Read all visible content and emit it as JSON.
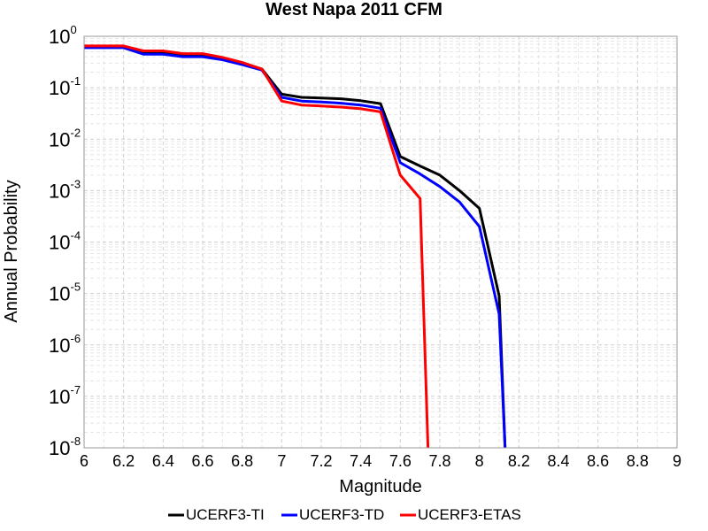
{
  "chart_data": {
    "type": "line",
    "title": "West Napa 2011 CFM",
    "xlabel": "Magnitude",
    "ylabel": "Annual Probability",
    "xlim": [
      6,
      9
    ],
    "ylim": [
      1e-08,
      1
    ],
    "yscale": "log",
    "grid": true,
    "legend_position": "bottom",
    "x_ticks": [
      "6",
      "6.2",
      "6.4",
      "6.6",
      "6.8",
      "7",
      "7.2",
      "7.4",
      "7.6",
      "7.8",
      "8",
      "8.2",
      "8.4",
      "8.6",
      "8.8",
      "9"
    ],
    "y_ticks": [
      {
        "base": "10",
        "exp": "0"
      },
      {
        "base": "10",
        "exp": "-1"
      },
      {
        "base": "10",
        "exp": "-2"
      },
      {
        "base": "10",
        "exp": "-3"
      },
      {
        "base": "10",
        "exp": "-4"
      },
      {
        "base": "10",
        "exp": "-5"
      },
      {
        "base": "10",
        "exp": "-6"
      },
      {
        "base": "10",
        "exp": "-7"
      },
      {
        "base": "10",
        "exp": "-8"
      }
    ],
    "series": [
      {
        "name": "UCERF3-TI",
        "color": "#000000",
        "x": [
          6.0,
          6.1,
          6.2,
          6.3,
          6.4,
          6.5,
          6.6,
          6.7,
          6.8,
          6.9,
          7.0,
          7.1,
          7.2,
          7.3,
          7.4,
          7.5,
          7.6,
          7.7,
          7.8,
          7.9,
          8.0,
          8.1,
          8.13
        ],
        "y": [
          0.62,
          0.62,
          0.62,
          0.5,
          0.5,
          0.44,
          0.44,
          0.38,
          0.3,
          0.23,
          0.075,
          0.065,
          0.063,
          0.061,
          0.056,
          0.049,
          0.0046,
          0.003,
          0.002,
          0.001,
          0.00045,
          9e-06,
          1e-08
        ]
      },
      {
        "name": "UCERF3-TD",
        "color": "#0000ff",
        "x": [
          6.0,
          6.1,
          6.2,
          6.3,
          6.4,
          6.5,
          6.6,
          6.7,
          6.8,
          6.9,
          7.0,
          7.1,
          7.2,
          7.3,
          7.4,
          7.5,
          7.6,
          7.7,
          7.8,
          7.9,
          8.0,
          8.1,
          8.13
        ],
        "y": [
          0.6,
          0.6,
          0.6,
          0.45,
          0.45,
          0.4,
          0.4,
          0.35,
          0.28,
          0.22,
          0.065,
          0.055,
          0.053,
          0.05,
          0.046,
          0.04,
          0.0035,
          0.0021,
          0.0012,
          0.0006,
          0.0002,
          4e-06,
          1e-08
        ]
      },
      {
        "name": "UCERF3-ETAS",
        "color": "#ff0000",
        "x": [
          6.0,
          6.1,
          6.2,
          6.3,
          6.4,
          6.5,
          6.6,
          6.7,
          6.8,
          6.9,
          7.0,
          7.1,
          7.2,
          7.3,
          7.4,
          7.5,
          7.6,
          7.7,
          7.74
        ],
        "y": [
          0.65,
          0.65,
          0.65,
          0.52,
          0.52,
          0.46,
          0.46,
          0.39,
          0.31,
          0.23,
          0.055,
          0.046,
          0.044,
          0.042,
          0.039,
          0.034,
          0.002,
          0.0007,
          1e-08
        ]
      }
    ]
  }
}
